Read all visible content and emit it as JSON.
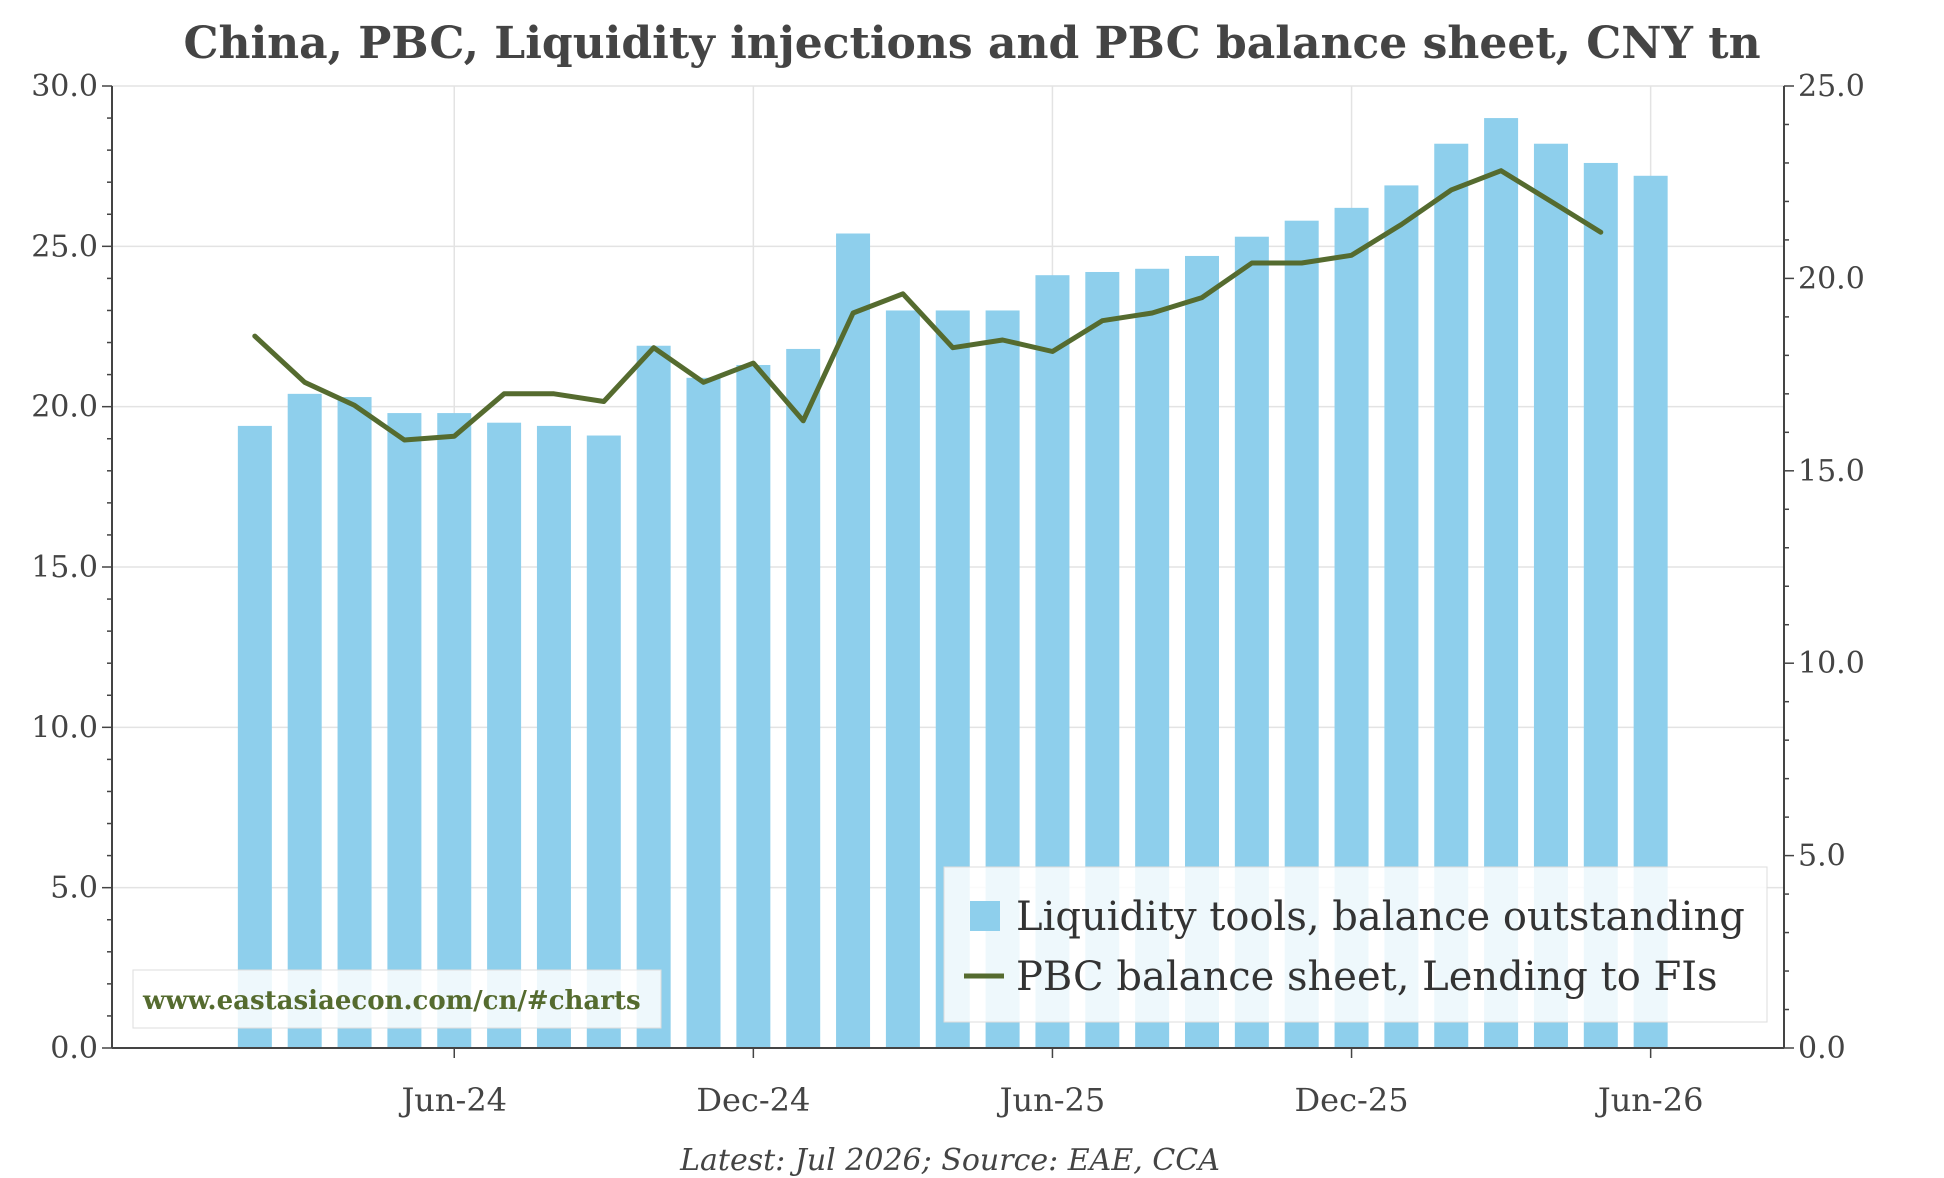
{
  "chart_data": {
    "type": "bar",
    "title": "China, PBC, Liquidity injections and PBC balance sheet, CNY tn",
    "footnote": "Latest: Jul 2026; Source: EAE, CCA",
    "watermark": "www.eastasiaecon.com/cn/#charts",
    "y_left": {
      "ylim": [
        0,
        30
      ],
      "ticks": [
        "0.0",
        "5.0",
        "10.0",
        "15.0",
        "20.0",
        "25.0",
        "30.0"
      ]
    },
    "y_right": {
      "ylim": [
        0,
        25
      ],
      "ticks": [
        "0.0",
        "5.0",
        "10.0",
        "15.0",
        "20.0",
        "25.0"
      ]
    },
    "x_ticks": [
      {
        "label": "Jun-24",
        "month": "2024-06"
      },
      {
        "label": "Dec-24",
        "month": "2024-12"
      },
      {
        "label": "Jun-25",
        "month": "2025-06"
      },
      {
        "label": "Dec-25",
        "month": "2025-12"
      },
      {
        "label": "Jun-26",
        "month": "2026-06"
      }
    ],
    "x": [
      "2024-01",
      "2024-02",
      "2024-03",
      "2024-04",
      "2024-05",
      "2024-06",
      "2024-07",
      "2024-08",
      "2024-09",
      "2024-10",
      "2024-11",
      "2024-12",
      "2025-01",
      "2025-02",
      "2025-03",
      "2025-04",
      "2025-05",
      "2025-06",
      "2025-07",
      "2025-08",
      "2025-09",
      "2025-10",
      "2025-11",
      "2025-12",
      "2026-01",
      "2026-02",
      "2026-03",
      "2026-04",
      "2026-05",
      "2026-06",
      "2026-07",
      "2026-08",
      "2026-09",
      "2026-10",
      "2026-11"
    ],
    "series": [
      {
        "name": "Liquidity tools, balance outstanding",
        "type": "bar",
        "axis": "left",
        "color": "#8ECFEC",
        "values": [
          null,
          19.4,
          20.4,
          20.3,
          19.8,
          19.8,
          19.5,
          19.4,
          19.1,
          21.9,
          20.9,
          21.3,
          21.8,
          25.4,
          23.0,
          23.0,
          23.0,
          24.1,
          24.2,
          24.3,
          24.7,
          25.3,
          25.8,
          26.2,
          26.9,
          28.2,
          29.0,
          28.2,
          27.6,
          27.2,
          null,
          null,
          null,
          null,
          null
        ]
      },
      {
        "name": "PBC balance sheet, Lending to FIs",
        "type": "line",
        "axis": "right",
        "color": "#556B2F",
        "values": [
          null,
          18.5,
          17.3,
          16.7,
          15.8,
          15.9,
          17.0,
          17.0,
          16.8,
          18.2,
          17.3,
          17.8,
          16.3,
          19.1,
          19.6,
          18.2,
          18.4,
          18.1,
          18.9,
          19.1,
          19.5,
          20.4,
          20.4,
          20.6,
          21.4,
          22.3,
          22.8,
          22.0,
          21.2,
          null,
          null,
          null,
          null,
          null,
          null
        ]
      }
    ],
    "legend": {
      "position": "bottom-right"
    },
    "grid": true
  }
}
